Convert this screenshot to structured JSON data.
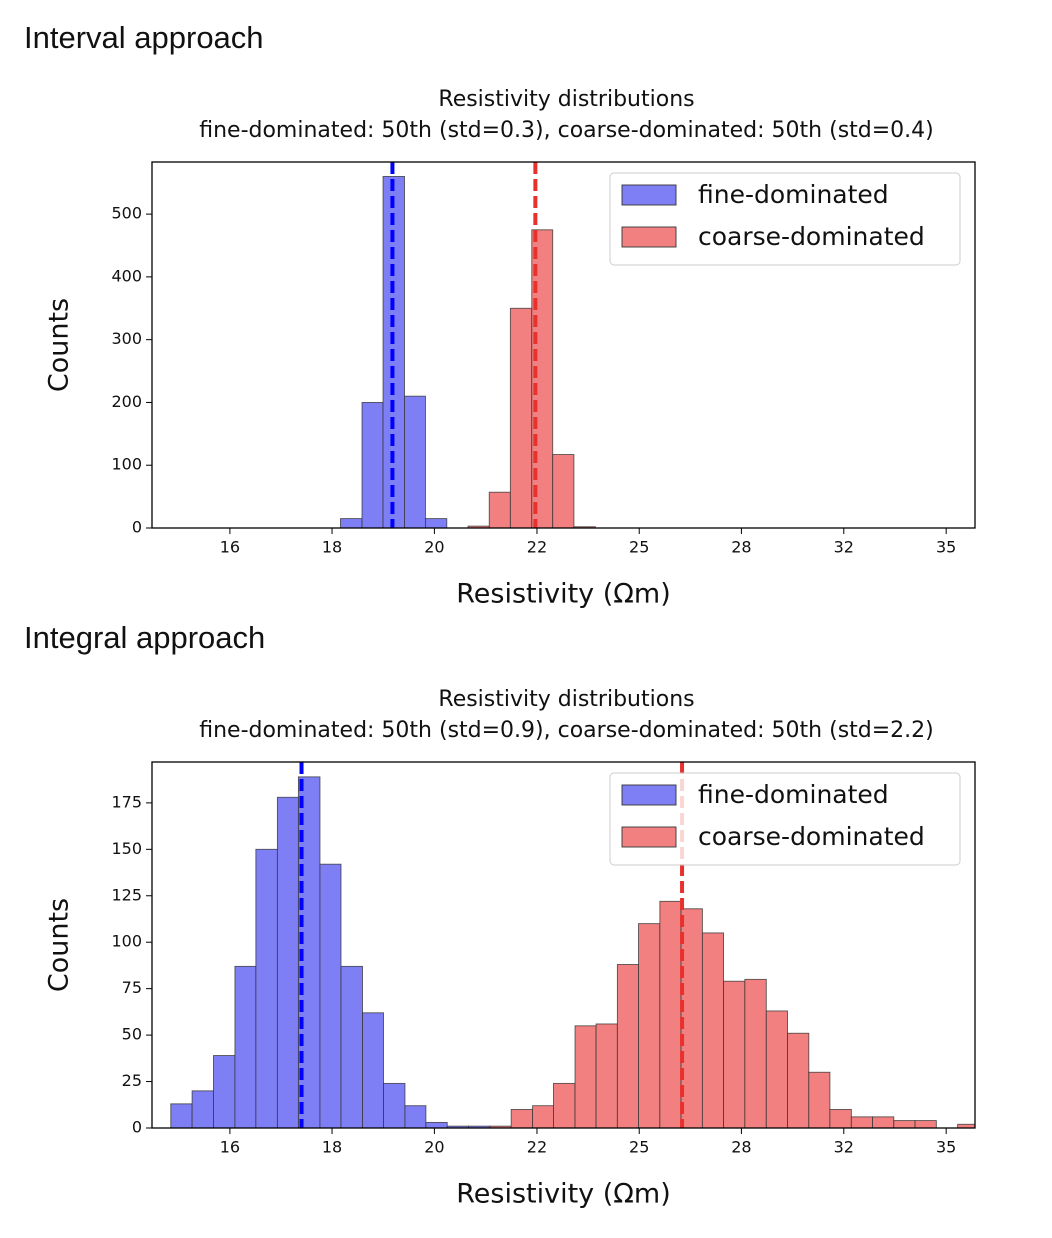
{
  "chart_data": [
    {
      "type": "histogram",
      "heading": "Interval approach",
      "title": "Resistivity distributions",
      "subtitle": "fine-dominated: 50th (std=0.3), coarse-dominated: 50th (std=0.4)",
      "xlabel": "Resistivity (Ωm)",
      "ylabel": "Counts",
      "xscale": "log",
      "legend": "upper right",
      "bins": [
        17.95,
        18.39,
        18.83,
        19.29,
        19.75,
        20.23,
        20.72,
        21.22,
        21.73,
        22.26,
        22.79,
        23.34,
        23.91
      ],
      "series": [
        {
          "name": "fine-dominated",
          "color": "#7f7ff5",
          "values": [
            15,
            200,
            560,
            210,
            15,
            0,
            0,
            0,
            0,
            0,
            0,
            0
          ],
          "median": 19.03,
          "median_color": "#0000ff"
        },
        {
          "name": "coarse-dominated",
          "color": "#f28080",
          "values": [
            0,
            0,
            0,
            0,
            0,
            0,
            3,
            57,
            350,
            475,
            117,
            2
          ],
          "median": 22.35,
          "median_color": "#e8302c"
        }
      ],
      "xlim": [
        14.52,
        36.65
      ],
      "ylim": [
        0,
        583
      ],
      "xticks": [
        {
          "value": 15.85,
          "label": "16"
        },
        {
          "value": 17.78,
          "label": "18"
        },
        {
          "value": 19.95,
          "label": "20"
        },
        {
          "value": 22.39,
          "label": "22"
        },
        {
          "value": 25.12,
          "label": "25"
        },
        {
          "value": 28.18,
          "label": "28"
        },
        {
          "value": 31.62,
          "label": "32"
        },
        {
          "value": 35.48,
          "label": "35"
        }
      ],
      "yticks": [
        0,
        100,
        200,
        300,
        400,
        500
      ]
    },
    {
      "type": "histogram",
      "heading": "Integral approach",
      "title": "Resistivity distributions",
      "subtitle": "fine-dominated: 50th (std=0.9), coarse-dominated: 50th (std=2.2)",
      "xlabel": "Resistivity (Ωm)",
      "ylabel": "Counts",
      "xscale": "log",
      "legend": "upper right",
      "bins": [
        14.83,
        15.19,
        15.56,
        15.94,
        16.32,
        16.72,
        17.12,
        17.54,
        17.96,
        18.4,
        18.84,
        19.3,
        19.76,
        20.24,
        20.73,
        21.24,
        21.75,
        22.28,
        22.81,
        23.37,
        23.93,
        24.51,
        25.1,
        25.71,
        26.33,
        26.97,
        27.62,
        28.29,
        28.98,
        29.68,
        30.4,
        31.13,
        31.89,
        32.66,
        33.45,
        34.26,
        35.09,
        35.94,
        36.81
      ],
      "series": [
        {
          "name": "fine-dominated",
          "color": "#7f7ff5",
          "values": [
            13,
            20,
            39,
            87,
            150,
            178,
            189,
            142,
            87,
            62,
            24,
            12,
            3,
            1,
            1,
            0,
            0,
            0,
            0,
            0,
            0,
            0,
            0,
            0,
            0,
            0,
            0,
            0,
            0,
            0,
            0,
            0,
            0,
            0,
            0,
            0,
            0,
            0
          ],
          "median": 17.18,
          "median_color": "#0000ff"
        },
        {
          "name": "coarse-dominated",
          "color": "#f28080",
          "values": [
            0,
            0,
            0,
            0,
            0,
            0,
            0,
            0,
            0,
            0,
            0,
            0,
            0,
            0,
            0,
            1,
            10,
            12,
            24,
            55,
            56,
            88,
            110,
            122,
            118,
            105,
            79,
            80,
            63,
            51,
            30,
            10,
            6,
            6,
            4,
            4,
            0,
            2
          ],
          "median": 26.36,
          "median_color": "#e8302c"
        }
      ],
      "xlim": [
        14.52,
        36.65
      ],
      "ylim": [
        0,
        197
      ],
      "xticks": [
        {
          "value": 15.85,
          "label": "16"
        },
        {
          "value": 17.78,
          "label": "18"
        },
        {
          "value": 19.95,
          "label": "20"
        },
        {
          "value": 22.39,
          "label": "22"
        },
        {
          "value": 25.12,
          "label": "25"
        },
        {
          "value": 28.18,
          "label": "28"
        },
        {
          "value": 31.62,
          "label": "32"
        },
        {
          "value": 35.48,
          "label": "35"
        }
      ],
      "yticks": [
        0,
        25,
        50,
        75,
        100,
        125,
        150,
        175
      ]
    }
  ]
}
